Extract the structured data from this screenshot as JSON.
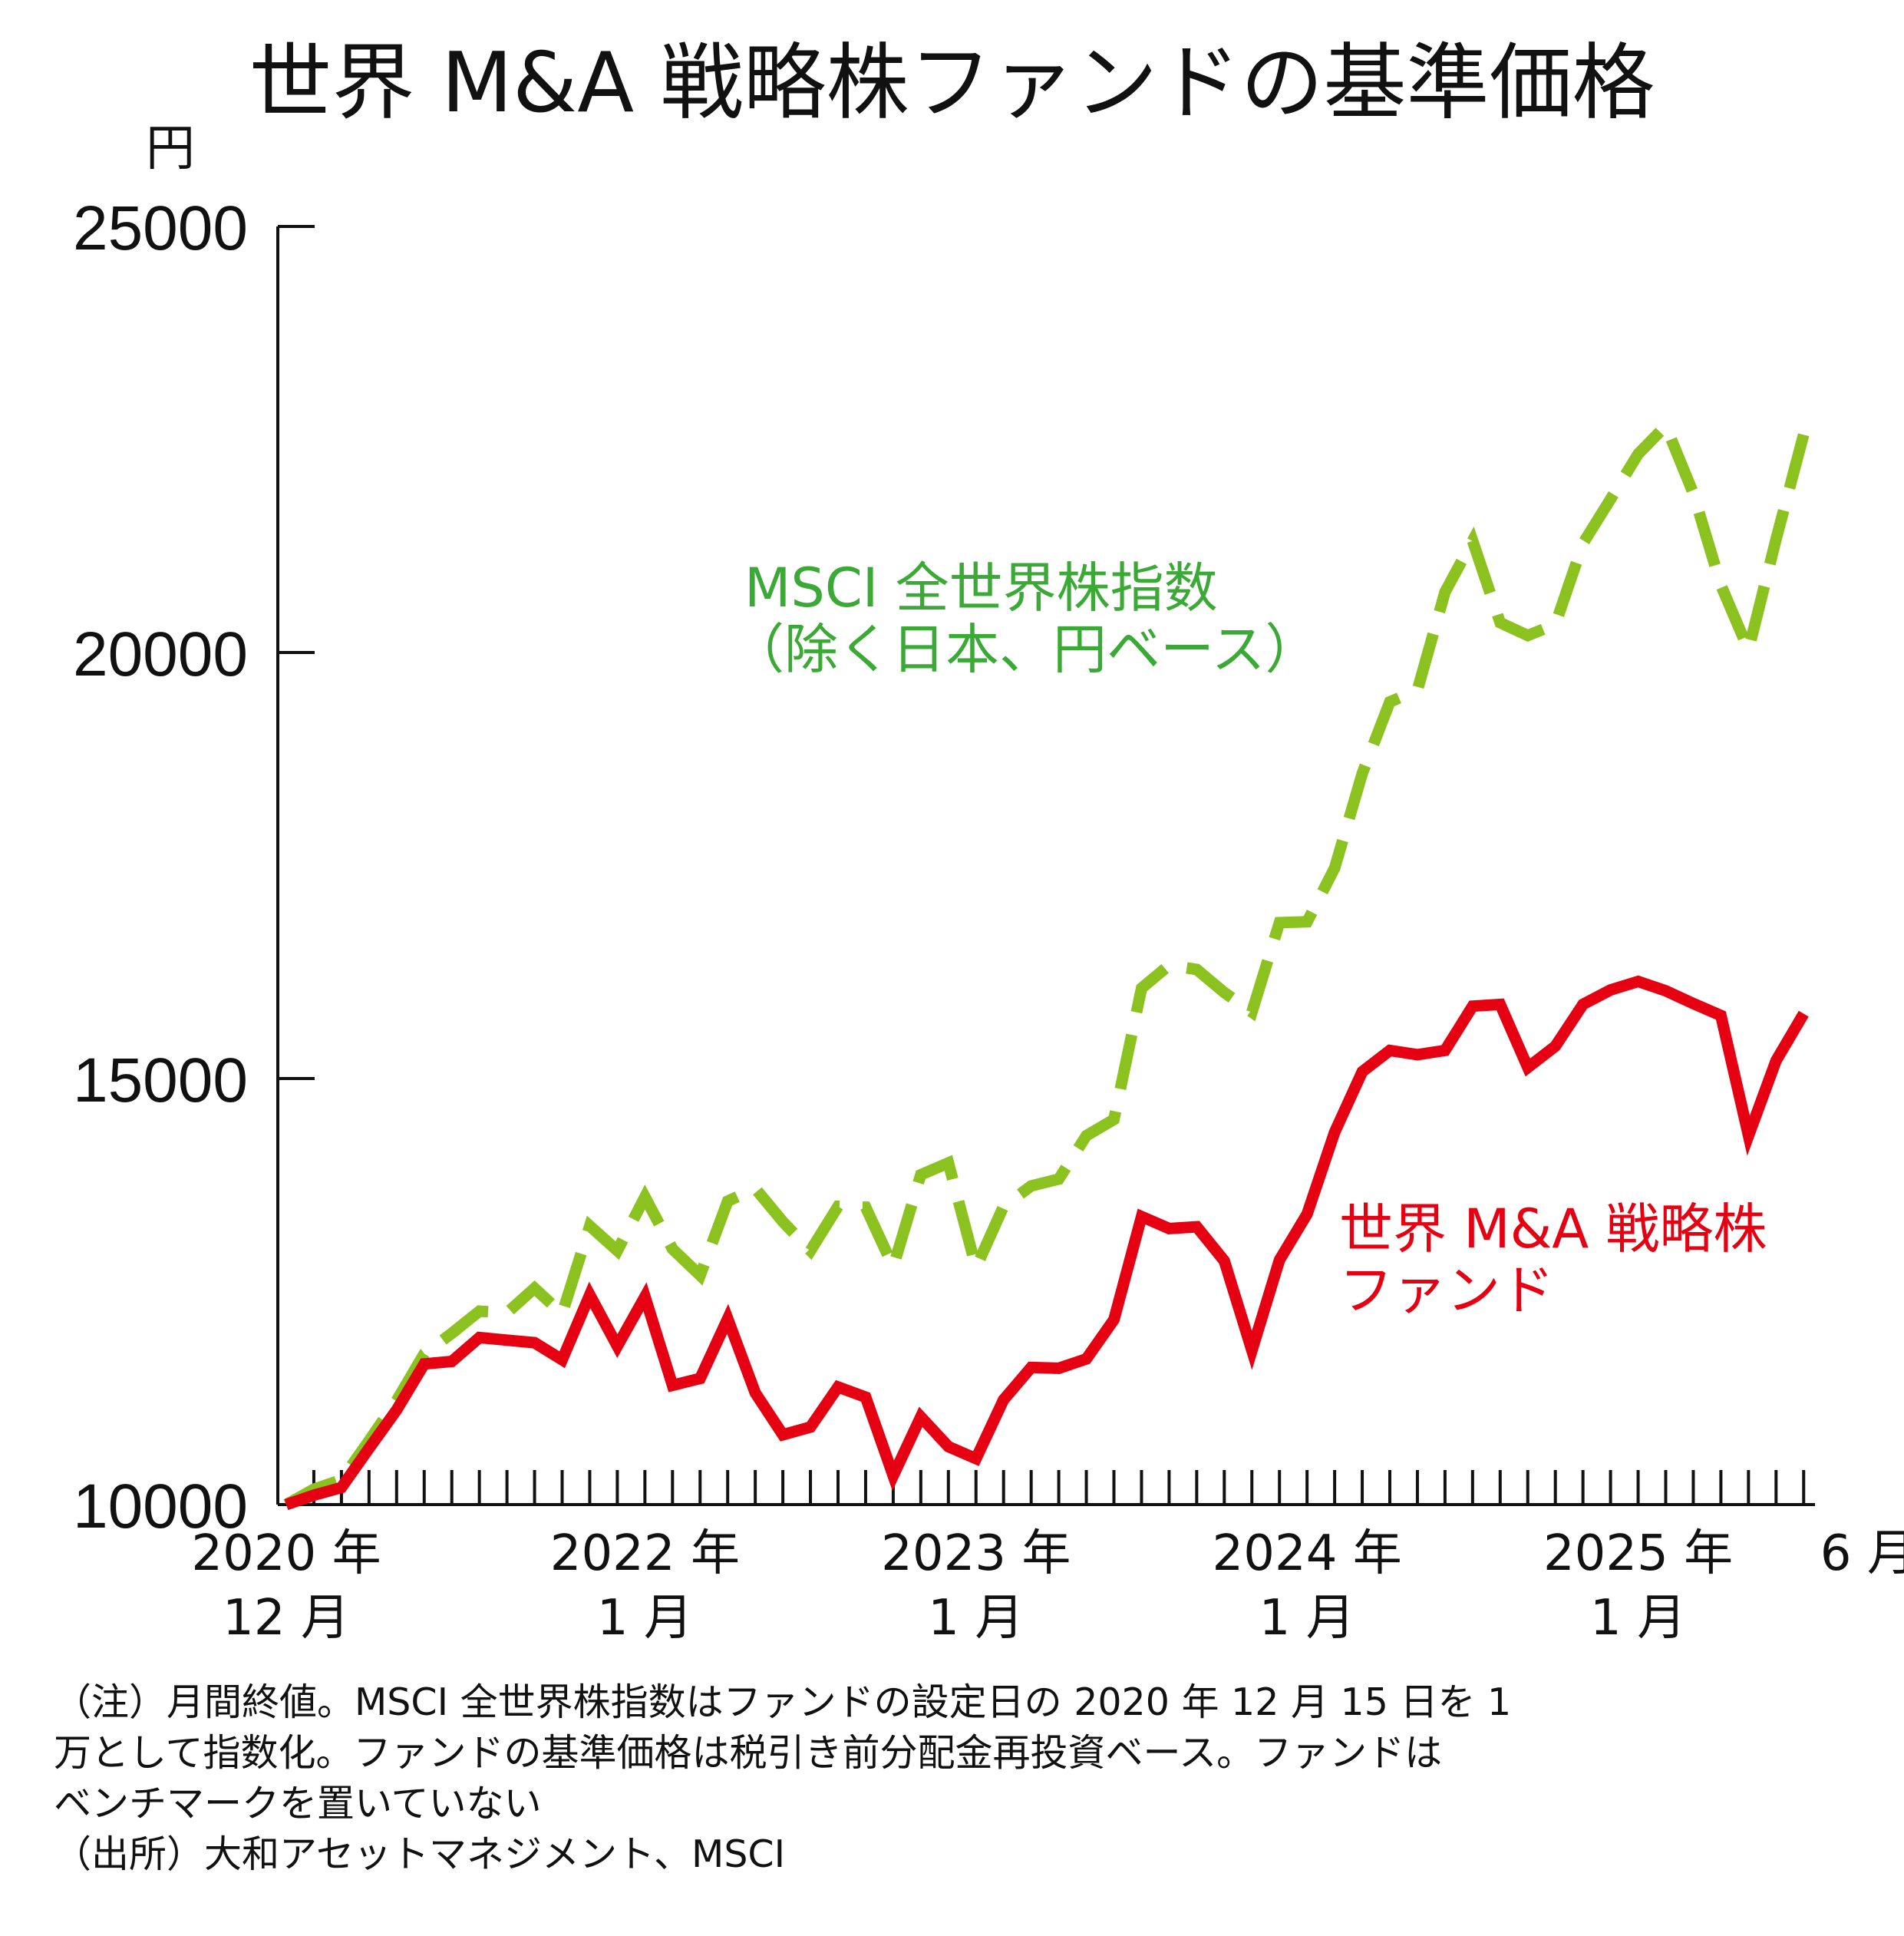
{
  "title": "世界 M&A 戦略株ファンドの基準価格",
  "chart_data": {
    "type": "line",
    "title": "世界 M&A 戦略株ファンドの基準価格",
    "y_unit": "円",
    "ylim": [
      10000,
      25000
    ],
    "yticks": [
      "10000",
      "15000",
      "20000",
      "25000"
    ],
    "x_labels": [
      {
        "month": 0,
        "lines": [
          "2020 年",
          "12 月"
        ]
      },
      {
        "month": 13,
        "lines": [
          "2022 年",
          "1 月"
        ]
      },
      {
        "month": 25,
        "lines": [
          "2023 年",
          "1 月"
        ]
      },
      {
        "month": 37,
        "lines": [
          "2024 年",
          "1 月"
        ]
      },
      {
        "month": 49,
        "lines": [
          "2025 年",
          "1 月"
        ]
      },
      {
        "month": 54,
        "lines": [
          "6 月",
          ""
        ]
      }
    ],
    "x_start": "2020-12",
    "x_end": "2025-06",
    "series": [
      {
        "name": "MSCI 全世界株指数（除く日本、円ベース）",
        "name_lines": [
          "MSCI 全世界株指数",
          "（除く日本、円ベース）"
        ],
        "color": "#8cc21f",
        "style": "dashed",
        "values": [
          10000,
          10180,
          10290,
          10750,
          11220,
          11770,
          12010,
          12270,
          12250,
          12540,
          12240,
          13270,
          12980,
          13610,
          13000,
          12690,
          13560,
          13710,
          13320,
          12980,
          13500,
          13490,
          12790,
          13870,
          14010,
          12780,
          13500,
          13740,
          13820,
          14330,
          14520,
          16060,
          16330,
          16280,
          16010,
          15780,
          16830,
          16840,
          17470,
          18580,
          19420,
          19560,
          20710,
          21310,
          20350,
          20200,
          20330,
          21280,
          21800,
          22330,
          22660,
          21870,
          20790,
          20030,
          21330,
          22560
        ]
      },
      {
        "name": "世界 M&A 戦略株ファンド",
        "name_lines": [
          "世界 M&A 戦略株",
          "ファンド"
        ],
        "color": "#e50012",
        "style": "solid",
        "values": [
          10000,
          10110,
          10200,
          10660,
          11110,
          11650,
          11680,
          11960,
          11930,
          11900,
          11700,
          12460,
          11860,
          12440,
          11400,
          11480,
          12180,
          11310,
          10820,
          10910,
          11380,
          11260,
          10340,
          11030,
          10680,
          10540,
          11230,
          11610,
          11600,
          11710,
          12170,
          13380,
          13240,
          13260,
          12860,
          11810,
          12870,
          13410,
          14370,
          15080,
          15330,
          15280,
          15330,
          15850,
          15870,
          15130,
          15380,
          15870,
          16040,
          16140,
          16030,
          15880,
          15740,
          14330,
          15210,
          15760
        ]
      }
    ]
  },
  "notes": [
    "（注）月間終値。MSCI 全世界株指数はファンドの設定日の 2020 年 12 月 15 日を 1",
    "万として指数化。ファンドの基準価格は税引き前分配金再投資ベース。ファンドは",
    "ベンチマークを置いていない",
    "（出所）大和アセットマネジメント、MSCI"
  ]
}
